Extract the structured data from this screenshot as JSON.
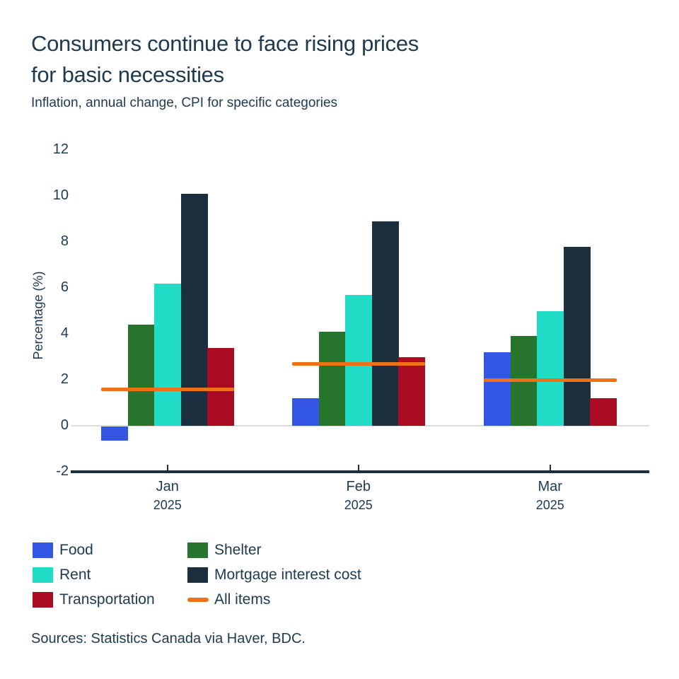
{
  "header": {
    "title_line1": "Consumers continue to face rising prices",
    "title_line2": "for basic necessities",
    "subtitle": "Inflation, annual change, CPI for specific categories"
  },
  "chart_data": {
    "type": "bar",
    "title": "Consumers continue to face rising prices for basic necessities",
    "subtitle": "Inflation, annual change, CPI for specific categories",
    "categories": [
      "Jan 2025",
      "Feb 2025",
      "Mar 2025"
    ],
    "x_tick_labels": [
      {
        "line1": "Jan",
        "line2": "2025"
      },
      {
        "line1": "Feb",
        "line2": "2025"
      },
      {
        "line1": "Mar",
        "line2": "2025"
      }
    ],
    "series": [
      {
        "name": "Food",
        "mark": "bar",
        "values": [
          -0.6,
          1.2,
          3.2
        ],
        "color": "#3356e3"
      },
      {
        "name": "Shelter",
        "mark": "bar",
        "values": [
          4.4,
          4.1,
          3.9
        ],
        "color": "#27752c"
      },
      {
        "name": "Rent",
        "mark": "bar",
        "values": [
          6.2,
          5.7,
          5.0
        ],
        "color": "#21dcc6"
      },
      {
        "name": "Mortgage interest cost",
        "mark": "bar",
        "values": [
          10.1,
          8.9,
          7.8
        ],
        "color": "#1c2f3e"
      },
      {
        "name": "Transportation",
        "mark": "bar",
        "values": [
          3.4,
          3.0,
          1.2
        ],
        "color": "#a80b22"
      },
      {
        "name": "All items",
        "mark": "line",
        "values": [
          1.6,
          2.7,
          2.0
        ],
        "color": "#ee7118"
      }
    ],
    "xlabel": "",
    "ylabel": "Percentage (%)",
    "ylim": [
      -2,
      12
    ],
    "yticks": [
      -2,
      0,
      2,
      4,
      6,
      8,
      10,
      12
    ],
    "grid": "zero-line-only",
    "legend_position": "bottom"
  },
  "legend": {
    "columns": [
      [
        {
          "label": "Food",
          "swatch": "square",
          "color": "#3356e3"
        },
        {
          "label": "Rent",
          "swatch": "square",
          "color": "#21dcc6"
        },
        {
          "label": "Transportation",
          "swatch": "square",
          "color": "#a80b22"
        }
      ],
      [
        {
          "label": "Shelter",
          "swatch": "square",
          "color": "#27752c"
        },
        {
          "label": "Mortgage interest cost",
          "swatch": "square",
          "color": "#1c2f3e"
        },
        {
          "label": "All items",
          "swatch": "line",
          "color": "#ee7118"
        }
      ]
    ]
  },
  "footer": {
    "sources": "Sources: Statistics Canada via Haver, BDC."
  },
  "colors": {
    "text": "#1d3a4f",
    "axis": "#1c2f3e",
    "zero_line": "#dcdcdc",
    "background": "#ffffff"
  }
}
